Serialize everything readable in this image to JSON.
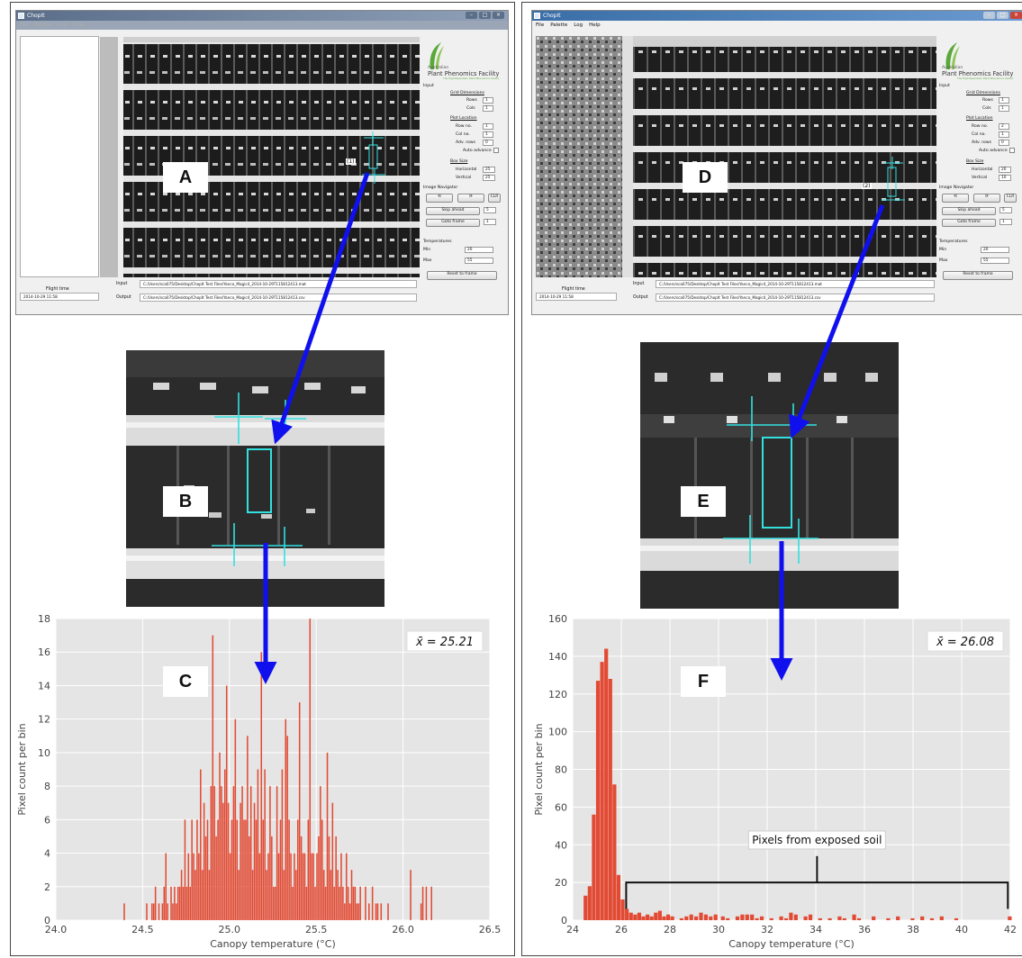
{
  "panels": {
    "A": "A",
    "B": "B",
    "C": "C",
    "D": "D",
    "E": "E",
    "F": "F"
  },
  "app": {
    "title": "ChopIt",
    "menu": [
      "File",
      "Palette",
      "Log",
      "Help"
    ],
    "logo_line1": "Australian",
    "logo_line2": "Plant Phenomics Facility",
    "logo_tag": "The High Resolution Plant Phenomics Centre",
    "input_section": "Input",
    "grid_title": "Grid Dimensions",
    "rows_label": "Rows",
    "cols_label": "Cols",
    "plot_title": "Plot Location",
    "rowno_label": "Row no.",
    "colno_label": "Col no.",
    "advrows_label": "Adv. rows",
    "auto_advance": "Auto advance",
    "box_title": "Box Size",
    "horizontal_label": "Horizontal",
    "vertical_label": "Vertical",
    "nav_title": "Image Navigator",
    "prev_btn": "⟲",
    "next_btn": "⟳",
    "clr_btn": "CLR",
    "skip_btn": "Skip ahead",
    "goto_btn": "Goto frame",
    "temps_title": "Temperatures",
    "min_label": "Min",
    "max_label": "Max",
    "reset_btn": "Reset to frame",
    "flight_time_label": "Flight time",
    "flight_time": "2014-10-29 11:58",
    "input_label": "Input",
    "output_label": "Output",
    "input_path": "C:/Users/sca075/Desktop/ChopIt Test Files/Yanco_Magic4_2014-10-29T115812413.mat",
    "output_path": "C:/Users/sca075/Desktop/ChopIt Test Files/Yanco_Magic4_2014-10-29T115812413.csv"
  },
  "left_app": {
    "rows": "1",
    "cols": "1",
    "row_no": "1",
    "col_no": "1",
    "adv_rows": "0",
    "horizontal": "25",
    "vertical": "25",
    "skip": "5",
    "goto": "1",
    "min": "20",
    "max": "55",
    "plot_tag": "(1)"
  },
  "right_app": {
    "rows": "1",
    "cols": "1",
    "row_no": "2",
    "col_no": "1",
    "adv_rows": "0",
    "horizontal": "20",
    "vertical": "10",
    "skip": "5",
    "goto": "1",
    "min": "20",
    "max": "55",
    "plot_tag": "(2)"
  },
  "colors": {
    "arrow": "#1010ee",
    "bar": "#e24a33",
    "plot_bg": "#e5e5e5",
    "grid": "#ffffff",
    "cyan": "#33e0e0",
    "titlebar_left": "#6c7f9b",
    "titlebar_right": "#2e5f95"
  },
  "chart_data": [
    {
      "type": "bar",
      "xlabel": "Canopy temperature ($^\\circ$C)",
      "xlabel_text": "Canopy temperature (°C)",
      "ylabel": "Pixel count per bin",
      "annotation": "x̄ = 25.21",
      "xlim": [
        24.0,
        26.5
      ],
      "ylim": [
        0,
        18
      ],
      "xticks": [
        "24.0",
        "24.5",
        "25.0",
        "25.5",
        "26.0",
        "26.5"
      ],
      "yticks": [
        "0",
        "2",
        "4",
        "6",
        "8",
        "10",
        "12",
        "14",
        "16",
        "18"
      ],
      "bin_width": 0.01,
      "bins": [
        [
          24.39,
          1
        ],
        [
          24.52,
          1
        ],
        [
          24.55,
          1
        ],
        [
          24.56,
          1
        ],
        [
          24.57,
          2
        ],
        [
          24.59,
          1
        ],
        [
          24.61,
          1
        ],
        [
          24.62,
          2
        ],
        [
          24.63,
          4
        ],
        [
          24.64,
          1
        ],
        [
          24.66,
          2
        ],
        [
          24.67,
          1
        ],
        [
          24.68,
          2
        ],
        [
          24.69,
          1
        ],
        [
          24.7,
          2
        ],
        [
          24.71,
          2
        ],
        [
          24.72,
          3
        ],
        [
          24.73,
          2
        ],
        [
          24.74,
          6
        ],
        [
          24.75,
          2
        ],
        [
          24.76,
          4
        ],
        [
          24.77,
          2
        ],
        [
          24.78,
          6
        ],
        [
          24.79,
          4
        ],
        [
          24.8,
          3
        ],
        [
          24.81,
          6
        ],
        [
          24.82,
          4
        ],
        [
          24.83,
          9
        ],
        [
          24.84,
          3
        ],
        [
          24.85,
          7
        ],
        [
          24.86,
          5
        ],
        [
          24.87,
          6
        ],
        [
          24.88,
          3
        ],
        [
          24.89,
          8
        ],
        [
          24.9,
          17
        ],
        [
          24.91,
          8
        ],
        [
          24.92,
          5
        ],
        [
          24.93,
          6
        ],
        [
          24.94,
          10
        ],
        [
          24.95,
          8
        ],
        [
          24.96,
          7
        ],
        [
          24.97,
          9
        ],
        [
          24.98,
          14
        ],
        [
          24.99,
          7
        ],
        [
          25.0,
          4
        ],
        [
          25.01,
          6
        ],
        [
          25.02,
          8
        ],
        [
          25.03,
          12
        ],
        [
          25.04,
          6
        ],
        [
          25.05,
          3
        ],
        [
          25.06,
          7
        ],
        [
          25.07,
          8
        ],
        [
          25.08,
          6
        ],
        [
          25.09,
          6
        ],
        [
          25.1,
          11
        ],
        [
          25.11,
          5
        ],
        [
          25.12,
          8
        ],
        [
          25.13,
          3
        ],
        [
          25.14,
          7
        ],
        [
          25.15,
          6
        ],
        [
          25.16,
          9
        ],
        [
          25.17,
          4
        ],
        [
          25.18,
          16
        ],
        [
          25.19,
          6
        ],
        [
          25.2,
          9
        ],
        [
          25.21,
          3
        ],
        [
          25.22,
          4
        ],
        [
          25.23,
          8
        ],
        [
          25.24,
          5
        ],
        [
          25.25,
          2
        ],
        [
          25.26,
          2
        ],
        [
          25.27,
          8
        ],
        [
          25.28,
          4
        ],
        [
          25.29,
          6
        ],
        [
          25.3,
          9
        ],
        [
          25.31,
          3
        ],
        [
          25.32,
          12
        ],
        [
          25.33,
          11
        ],
        [
          25.34,
          6
        ],
        [
          25.35,
          4
        ],
        [
          25.36,
          2
        ],
        [
          25.37,
          4
        ],
        [
          25.38,
          3
        ],
        [
          25.39,
          6
        ],
        [
          25.4,
          13
        ],
        [
          25.41,
          5
        ],
        [
          25.42,
          4
        ],
        [
          25.43,
          4
        ],
        [
          25.44,
          2
        ],
        [
          25.45,
          6
        ],
        [
          25.46,
          18
        ],
        [
          25.47,
          4
        ],
        [
          25.48,
          4
        ],
        [
          25.49,
          2
        ],
        [
          25.5,
          4
        ],
        [
          25.51,
          5
        ],
        [
          25.52,
          8
        ],
        [
          25.53,
          6
        ],
        [
          25.54,
          3
        ],
        [
          25.55,
          2
        ],
        [
          25.56,
          10
        ],
        [
          25.57,
          5
        ],
        [
          25.58,
          3
        ],
        [
          25.59,
          7
        ],
        [
          25.6,
          2
        ],
        [
          25.61,
          5
        ],
        [
          25.62,
          3
        ],
        [
          25.63,
          2
        ],
        [
          25.64,
          4
        ],
        [
          25.65,
          2
        ],
        [
          25.66,
          1
        ],
        [
          25.67,
          4
        ],
        [
          25.68,
          2
        ],
        [
          25.69,
          1
        ],
        [
          25.7,
          3
        ],
        [
          25.71,
          2
        ],
        [
          25.72,
          2
        ],
        [
          25.73,
          1
        ],
        [
          25.74,
          1
        ],
        [
          25.75,
          2
        ],
        [
          25.78,
          2
        ],
        [
          25.8,
          1
        ],
        [
          25.82,
          2
        ],
        [
          25.84,
          1
        ],
        [
          25.85,
          1
        ],
        [
          25.87,
          1
        ],
        [
          25.91,
          1
        ],
        [
          26.04,
          3
        ],
        [
          26.1,
          1
        ],
        [
          26.11,
          2
        ],
        [
          26.13,
          2
        ],
        [
          26.16,
          2
        ]
      ]
    },
    {
      "type": "bar",
      "xlabel_text": "Canopy temperature (°C)",
      "ylabel": "Pixel count per bin",
      "annotation": "x̄ = 26.08",
      "bracket_label": "Pixels from exposed soil",
      "xlim": [
        24,
        42
      ],
      "ylim": [
        0,
        160
      ],
      "xticks": [
        "24",
        "26",
        "28",
        "30",
        "32",
        "34",
        "36",
        "38",
        "40",
        "42"
      ],
      "yticks": [
        "0",
        "20",
        "40",
        "60",
        "80",
        "100",
        "120",
        "140",
        "160"
      ],
      "bin_width": 0.17,
      "bins": [
        [
          24.45,
          13
        ],
        [
          24.62,
          18
        ],
        [
          24.79,
          56
        ],
        [
          24.96,
          127
        ],
        [
          25.13,
          137
        ],
        [
          25.3,
          144
        ],
        [
          25.47,
          128
        ],
        [
          25.64,
          72
        ],
        [
          25.81,
          24
        ],
        [
          25.98,
          11
        ],
        [
          26.15,
          6
        ],
        [
          26.32,
          4
        ],
        [
          26.49,
          3
        ],
        [
          26.66,
          4
        ],
        [
          26.83,
          2
        ],
        [
          27.0,
          3
        ],
        [
          27.17,
          2
        ],
        [
          27.34,
          4
        ],
        [
          27.51,
          5
        ],
        [
          27.68,
          2
        ],
        [
          27.85,
          3
        ],
        [
          28.02,
          2
        ],
        [
          28.4,
          1
        ],
        [
          28.6,
          2
        ],
        [
          28.8,
          3
        ],
        [
          29.0,
          2
        ],
        [
          29.2,
          4
        ],
        [
          29.4,
          3
        ],
        [
          29.6,
          2
        ],
        [
          29.8,
          3
        ],
        [
          30.1,
          2
        ],
        [
          30.3,
          1
        ],
        [
          30.7,
          2
        ],
        [
          30.9,
          3
        ],
        [
          31.1,
          3
        ],
        [
          31.3,
          3
        ],
        [
          31.5,
          1
        ],
        [
          31.7,
          2
        ],
        [
          32.1,
          1
        ],
        [
          32.5,
          2
        ],
        [
          32.7,
          1
        ],
        [
          32.9,
          4
        ],
        [
          33.1,
          3
        ],
        [
          33.5,
          2
        ],
        [
          33.7,
          3
        ],
        [
          34.1,
          1
        ],
        [
          34.5,
          1
        ],
        [
          34.9,
          2
        ],
        [
          35.1,
          1
        ],
        [
          35.5,
          3
        ],
        [
          35.7,
          1
        ],
        [
          36.3,
          2
        ],
        [
          36.9,
          1
        ],
        [
          37.3,
          2
        ],
        [
          37.9,
          1
        ],
        [
          38.3,
          2
        ],
        [
          38.7,
          1
        ],
        [
          39.1,
          2
        ],
        [
          39.7,
          1
        ],
        [
          41.9,
          2
        ]
      ]
    }
  ]
}
